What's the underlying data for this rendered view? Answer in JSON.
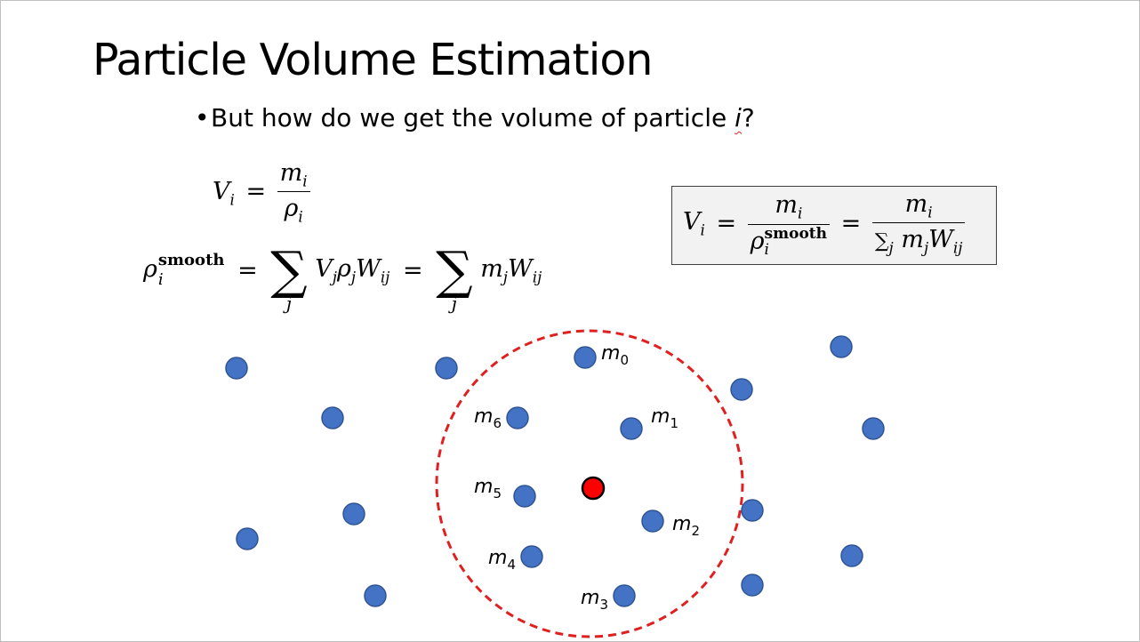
{
  "slide": {
    "title": "Particle Volume Estimation",
    "bullet": {
      "text_before": "But how do we get the volume of particle ",
      "variable": "i",
      "text_after": "?"
    }
  },
  "equations": {
    "eq1": {
      "lhs": "V",
      "lhs_sub": "i",
      "equals": "=",
      "num": "m",
      "num_sub": "i",
      "den": "ρ",
      "den_sub": "i"
    },
    "eq2": {
      "lhs": "ρ",
      "lhs_sub": "i",
      "lhs_sup": "smooth",
      "equals": "=",
      "sum_index": "j",
      "term1": "V",
      "term1_sub": "j",
      "term2": "ρ",
      "term2_sub": "j",
      "term3": "W",
      "term3_sub": "ij",
      "equals2": "=",
      "term4": "m",
      "term4_sub": "j",
      "term5": "W",
      "term5_sub": "ij"
    },
    "boxed": {
      "lhs": "V",
      "lhs_sub": "i",
      "equals": "=",
      "num1": "m",
      "num1_sub": "i",
      "den1": "ρ",
      "den1_sub": "i",
      "den1_sup": "smooth",
      "equals2": "=",
      "num2": "m",
      "num2_sub": "i",
      "den2_sum": "∑",
      "den2_sum_sub": "j",
      "den2_m": "m",
      "den2_m_sub": "j",
      "den2_w": "W",
      "den2_w_sub": "ij"
    }
  },
  "diagram": {
    "colors": {
      "particle": "#4472c4",
      "center": "#ff0000",
      "circle": "#e02020"
    },
    "neighbor_labels": [
      {
        "base": "m",
        "sub": "0"
      },
      {
        "base": "m",
        "sub": "1"
      },
      {
        "base": "m",
        "sub": "2"
      },
      {
        "base": "m",
        "sub": "3"
      },
      {
        "base": "m",
        "sub": "4"
      },
      {
        "base": "m",
        "sub": "5"
      },
      {
        "base": "m",
        "sub": "6"
      }
    ]
  }
}
